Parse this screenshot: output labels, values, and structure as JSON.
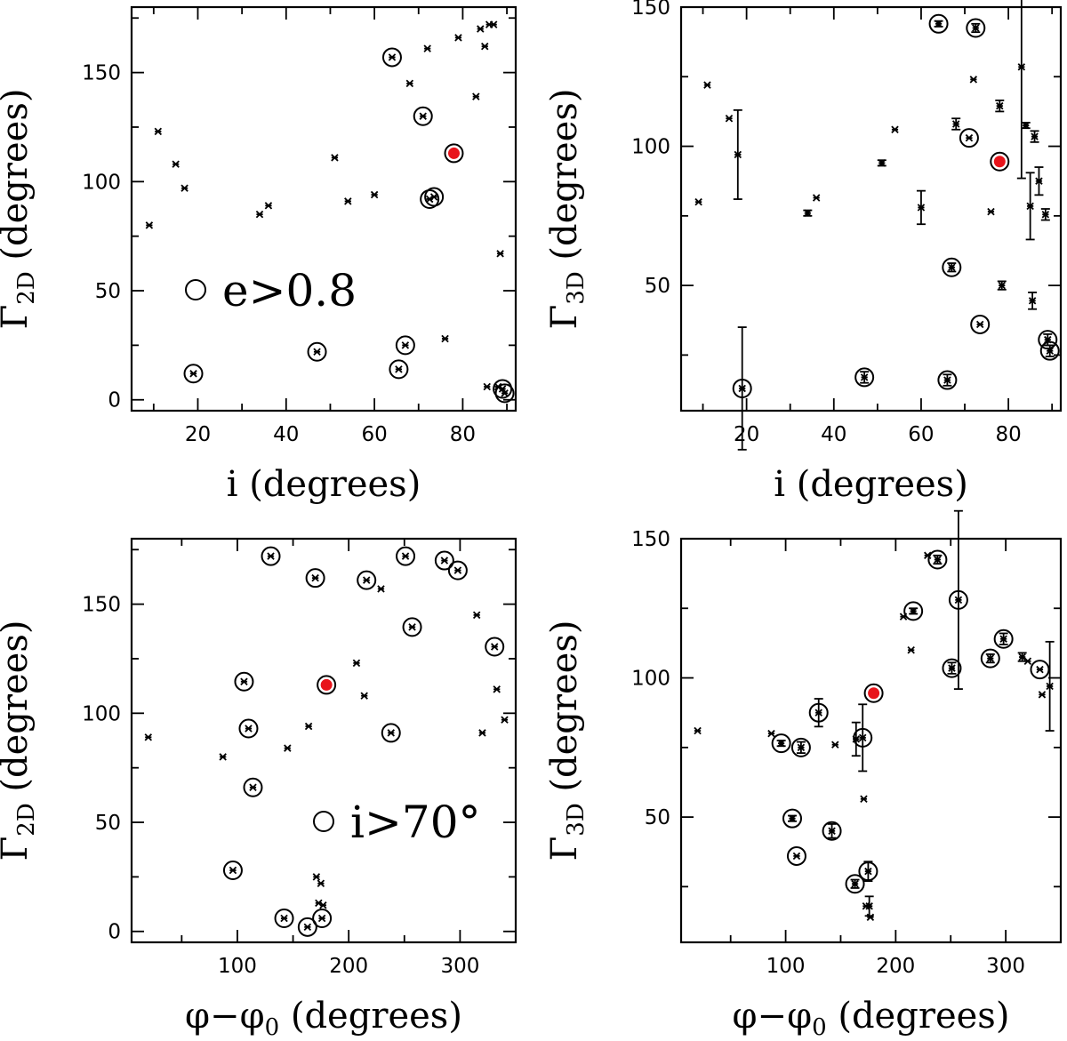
{
  "figure": {
    "panels": [
      {
        "id": "a",
        "title": "",
        "xlabel": "i (degrees)",
        "ylabel": "Γ",
        "ysub": "2D",
        "yunit": " (degrees)",
        "xlim": [
          5,
          92
        ],
        "ylim": [
          -5,
          180
        ],
        "xticks_labeled": [
          20,
          40,
          60,
          80
        ],
        "xticks_minor": [
          10,
          30,
          50,
          70,
          90
        ],
        "yticks_labeled": [
          0,
          50,
          100,
          150
        ],
        "yticks_minor": [
          25,
          75,
          125,
          175
        ],
        "legend": "e>0.8",
        "legend_value": "0.8",
        "highlight": {
          "x": 78,
          "y": 113
        },
        "points": [
          {
            "x": 9,
            "y": 80
          },
          {
            "x": 11,
            "y": 123
          },
          {
            "x": 15,
            "y": 108
          },
          {
            "x": 17,
            "y": 97
          },
          {
            "x": 19,
            "y": 12,
            "circled": true
          },
          {
            "x": 34,
            "y": 85
          },
          {
            "x": 36,
            "y": 89
          },
          {
            "x": 47,
            "y": 22,
            "circled": true
          },
          {
            "x": 51,
            "y": 111
          },
          {
            "x": 54,
            "y": 91
          },
          {
            "x": 60,
            "y": 94
          },
          {
            "x": 64,
            "y": 157,
            "circled": true
          },
          {
            "x": 65.5,
            "y": 14,
            "circled": true
          },
          {
            "x": 67,
            "y": 25,
            "circled": true
          },
          {
            "x": 68,
            "y": 145
          },
          {
            "x": 71,
            "y": 130,
            "circled": true
          },
          {
            "x": 72,
            "y": 161
          },
          {
            "x": 72.5,
            "y": 92,
            "circled": true
          },
          {
            "x": 73.5,
            "y": 93,
            "circled": true
          },
          {
            "x": 76,
            "y": 28
          },
          {
            "x": 79,
            "y": 166
          },
          {
            "x": 83,
            "y": 139
          },
          {
            "x": 84,
            "y": 170
          },
          {
            "x": 85,
            "y": 162
          },
          {
            "x": 85.5,
            "y": 6
          },
          {
            "x": 86,
            "y": 172
          },
          {
            "x": 87,
            "y": 172
          },
          {
            "x": 88,
            "y": 6
          },
          {
            "x": 88.5,
            "y": 67
          },
          {
            "x": 89,
            "y": 5,
            "circled": true
          },
          {
            "x": 89.5,
            "y": 3,
            "circled": true
          }
        ]
      },
      {
        "id": "b",
        "title": "",
        "xlabel": "i (degrees)",
        "ylabel": "Γ",
        "ysub": "3D",
        "yunit": " (degrees)",
        "xlim": [
          5,
          92
        ],
        "ylim": [
          5,
          150
        ],
        "xticks_labeled": [
          20,
          40,
          60,
          80
        ],
        "xticks_minor": [
          10,
          30,
          50,
          70,
          90
        ],
        "yticks_labeled": [
          50,
          100,
          150
        ],
        "yticks_minor": [
          25,
          75,
          125
        ],
        "highlight": {
          "x": 78,
          "y": 94.5
        },
        "points": [
          {
            "x": 9,
            "y": 80
          },
          {
            "x": 11,
            "y": 122
          },
          {
            "x": 16,
            "y": 110
          },
          {
            "x": 18,
            "y": 97,
            "err": 16
          },
          {
            "x": 19,
            "y": 13,
            "circled": true,
            "err": 22
          },
          {
            "x": 34,
            "y": 76,
            "err": 1
          },
          {
            "x": 36,
            "y": 81.5
          },
          {
            "x": 47,
            "y": 17,
            "circled": true,
            "err": 2
          },
          {
            "x": 51,
            "y": 94,
            "err": 1
          },
          {
            "x": 54,
            "y": 106
          },
          {
            "x": 60,
            "y": 78,
            "err": 6
          },
          {
            "x": 64,
            "y": 144,
            "circled": true,
            "err": 1
          },
          {
            "x": 66,
            "y": 16,
            "circled": true,
            "err": 2
          },
          {
            "x": 67,
            "y": 56.5,
            "circled": true,
            "err": 1.5
          },
          {
            "x": 68,
            "y": 108,
            "err": 2
          },
          {
            "x": 71,
            "y": 103,
            "circled": true
          },
          {
            "x": 72,
            "y": 124
          },
          {
            "x": 72.5,
            "y": 142.5,
            "circled": true,
            "err": 1.5
          },
          {
            "x": 73.5,
            "y": 36,
            "circled": true
          },
          {
            "x": 76,
            "y": 76.5
          },
          {
            "x": 78,
            "y": 114.5,
            "err": 2
          },
          {
            "x": 78.5,
            "y": 50,
            "err": 1.5
          },
          {
            "x": 83,
            "y": 128.5,
            "err": 40
          },
          {
            "x": 84,
            "y": 107.5,
            "err": 1
          },
          {
            "x": 85,
            "y": 78.5,
            "err": 12
          },
          {
            "x": 85.5,
            "y": 44.5,
            "err": 3
          },
          {
            "x": 86,
            "y": 103.5,
            "err": 2
          },
          {
            "x": 87,
            "y": 87.5,
            "err": 5
          },
          {
            "x": 88.5,
            "y": 75.5,
            "err": 2
          },
          {
            "x": 89,
            "y": 30.5,
            "circled": true,
            "err": 2
          },
          {
            "x": 89.5,
            "y": 26.5,
            "circled": true,
            "err": 2
          }
        ]
      },
      {
        "id": "c",
        "title": "",
        "xlabel": "φ−φ",
        "xsub": "0",
        "xunit": " (degrees)",
        "ylabel": "Γ",
        "ysub": "2D",
        "yunit": " (degrees)",
        "xlim": [
          5,
          350
        ],
        "ylim": [
          -5,
          180
        ],
        "xticks_labeled": [
          100,
          200,
          300
        ],
        "xticks_minor": [
          50,
          150,
          250
        ],
        "yticks_labeled": [
          0,
          50,
          100,
          150
        ],
        "yticks_minor": [
          25,
          75,
          125,
          175
        ],
        "legend": "i>70°",
        "legend_value": "70",
        "highlight": {
          "x": 180,
          "y": 113
        },
        "points": [
          {
            "x": 20,
            "y": 89
          },
          {
            "x": 87,
            "y": 80
          },
          {
            "x": 96,
            "y": 28,
            "circled": true
          },
          {
            "x": 106,
            "y": 114.5,
            "circled": true
          },
          {
            "x": 110,
            "y": 93,
            "circled": true
          },
          {
            "x": 114,
            "y": 66,
            "circled": true
          },
          {
            "x": 130,
            "y": 172,
            "circled": true
          },
          {
            "x": 142,
            "y": 6,
            "circled": true
          },
          {
            "x": 145,
            "y": 84
          },
          {
            "x": 163,
            "y": 2,
            "circled": true
          },
          {
            "x": 164,
            "y": 94
          },
          {
            "x": 170,
            "y": 162,
            "circled": true
          },
          {
            "x": 171,
            "y": 25
          },
          {
            "x": 173,
            "y": 13
          },
          {
            "x": 175,
            "y": 22
          },
          {
            "x": 176,
            "y": 6,
            "circled": true
          },
          {
            "x": 177,
            "y": 12
          },
          {
            "x": 207,
            "y": 123
          },
          {
            "x": 214,
            "y": 108
          },
          {
            "x": 216,
            "y": 161,
            "circled": true
          },
          {
            "x": 229,
            "y": 157
          },
          {
            "x": 238,
            "y": 91,
            "circled": true
          },
          {
            "x": 251,
            "y": 172,
            "circled": true
          },
          {
            "x": 257,
            "y": 139.5,
            "circled": true
          },
          {
            "x": 286,
            "y": 170,
            "circled": true
          },
          {
            "x": 298,
            "y": 165.5,
            "circled": true
          },
          {
            "x": 315,
            "y": 145
          },
          {
            "x": 320,
            "y": 91
          },
          {
            "x": 331,
            "y": 130.5,
            "circled": true
          },
          {
            "x": 333,
            "y": 111
          },
          {
            "x": 340,
            "y": 97
          }
        ]
      },
      {
        "id": "d",
        "title": "",
        "xlabel": "φ−φ",
        "xsub": "0",
        "xunit": " (degrees)",
        "ylabel": "Γ",
        "ysub": "3D",
        "yunit": " (degrees)",
        "xlim": [
          5,
          350
        ],
        "ylim": [
          5,
          150
        ],
        "xticks_labeled": [
          100,
          200,
          300
        ],
        "xticks_minor": [
          50,
          150,
          250
        ],
        "yticks_labeled": [
          50,
          100,
          150
        ],
        "yticks_minor": [
          25,
          75,
          125
        ],
        "highlight": {
          "x": 180,
          "y": 94.5
        },
        "points": [
          {
            "x": 20,
            "y": 81
          },
          {
            "x": 87,
            "y": 80
          },
          {
            "x": 96,
            "y": 76.5,
            "circled": true,
            "err": 1
          },
          {
            "x": 106,
            "y": 49.5,
            "circled": true,
            "err": 1
          },
          {
            "x": 110,
            "y": 36,
            "circled": true
          },
          {
            "x": 114,
            "y": 75,
            "circled": true,
            "err": 2
          },
          {
            "x": 130,
            "y": 87.5,
            "circled": true,
            "err": 5
          },
          {
            "x": 142,
            "y": 45,
            "circled": true,
            "err": 2.5
          },
          {
            "x": 145,
            "y": 76
          },
          {
            "x": 163,
            "y": 26,
            "circled": true,
            "err": 1.5
          },
          {
            "x": 164,
            "y": 78,
            "err": 6
          },
          {
            "x": 170,
            "y": 78.5,
            "circled": true,
            "err": 12
          },
          {
            "x": 171,
            "y": 56.5
          },
          {
            "x": 173,
            "y": 18
          },
          {
            "x": 175,
            "y": 30.5,
            "circled": true,
            "err": 3.5
          },
          {
            "x": 176,
            "y": 18,
            "err": 3.5
          },
          {
            "x": 177,
            "y": 14
          },
          {
            "x": 207,
            "y": 122
          },
          {
            "x": 214,
            "y": 110
          },
          {
            "x": 216,
            "y": 124,
            "circled": true,
            "err": 1
          },
          {
            "x": 229,
            "y": 144
          },
          {
            "x": 238,
            "y": 142.5,
            "circled": true,
            "err": 1.5
          },
          {
            "x": 251,
            "y": 103.5,
            "circled": true,
            "err": 2
          },
          {
            "x": 257,
            "y": 128,
            "circled": true,
            "err": 32
          },
          {
            "x": 286,
            "y": 107,
            "circled": true,
            "err": 1.5
          },
          {
            "x": 298,
            "y": 114,
            "circled": true,
            "err": 2
          },
          {
            "x": 315,
            "y": 107.5,
            "err": 1.5
          },
          {
            "x": 320,
            "y": 106
          },
          {
            "x": 331,
            "y": 103,
            "circled": true
          },
          {
            "x": 333,
            "y": 94
          },
          {
            "x": 340,
            "y": 97,
            "err": 16
          }
        ]
      }
    ]
  },
  "chart_data": [
    {
      "type": "scatter",
      "title": "",
      "xlabel": "i (degrees)",
      "ylabel": "Γ2D (degrees)",
      "xlim": [
        5,
        92
      ],
      "ylim": [
        -5,
        180
      ],
      "legend": "circled points: e>0.8; red point highlighted"
    },
    {
      "type": "scatter",
      "title": "",
      "xlabel": "i (degrees)",
      "ylabel": "Γ3D (degrees)",
      "xlim": [
        5,
        92
      ],
      "ylim": [
        5,
        150
      ],
      "legend": "circled points: e>0.8; error bars shown"
    },
    {
      "type": "scatter",
      "title": "",
      "xlabel": "φ−φ0 (degrees)",
      "ylabel": "Γ2D (degrees)",
      "xlim": [
        5,
        350
      ],
      "ylim": [
        -5,
        180
      ],
      "legend": "circled points: i>70°"
    },
    {
      "type": "scatter",
      "title": "",
      "xlabel": "φ−φ0 (degrees)",
      "ylabel": "Γ3D (degrees)",
      "xlim": [
        5,
        350
      ],
      "ylim": [
        5,
        150
      ],
      "legend": "circled points: i>70°; error bars shown"
    }
  ]
}
